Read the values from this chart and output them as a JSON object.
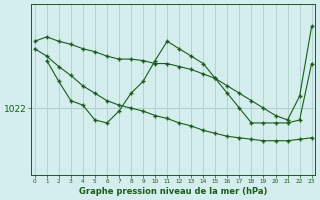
{
  "title": "Graphe pression niveau de la mer (hPa)",
  "background_color": "#d4eeed",
  "line_color": "#1a5c1a",
  "grid_color": "#b0d0cc",
  "ylabel_value": 1022,
  "x_ticks": [
    0,
    1,
    2,
    3,
    4,
    5,
    6,
    7,
    8,
    9,
    10,
    11,
    12,
    13,
    14,
    15,
    16,
    17,
    18,
    19,
    20,
    21,
    22,
    23
  ],
  "series1": {
    "x": [
      0,
      1,
      2,
      3,
      4,
      5,
      6,
      7,
      8,
      9,
      10,
      11,
      12,
      13,
      14,
      15,
      16,
      17,
      18,
      19,
      20,
      21,
      22,
      23
    ],
    "y": [
      1026.5,
      1026.8,
      1026.5,
      1026.3,
      1026.0,
      1025.8,
      1025.5,
      1025.3,
      1025.3,
      1025.2,
      1025.0,
      1025.0,
      1024.8,
      1024.6,
      1024.3,
      1024.0,
      1023.5,
      1023.0,
      1022.5,
      1022.0,
      1021.5,
      1021.2,
      1022.8,
      1027.5
    ]
  },
  "series2": {
    "x": [
      1,
      2,
      3,
      4,
      5,
      6,
      7,
      8,
      9,
      10,
      11,
      12,
      13,
      14,
      15,
      16,
      17,
      18,
      19,
      20,
      21,
      22,
      23
    ],
    "y": [
      1025.2,
      1023.8,
      1022.5,
      1022.2,
      1021.2,
      1021.0,
      1021.8,
      1023.0,
      1023.8,
      1025.2,
      1026.5,
      1026.0,
      1025.5,
      1025.0,
      1024.0,
      1023.0,
      1022.0,
      1021.0,
      1021.0,
      1021.0,
      1021.0,
      1021.2,
      1025.0
    ]
  },
  "series3": {
    "x": [
      0,
      1,
      2,
      3,
      4,
      5,
      6,
      7,
      8,
      9,
      10,
      11,
      12,
      13,
      14,
      15,
      16,
      17,
      18,
      19,
      20,
      21,
      22,
      23
    ],
    "y": [
      1026.0,
      1025.5,
      1024.8,
      1024.2,
      1023.5,
      1023.0,
      1022.5,
      1022.2,
      1022.0,
      1021.8,
      1021.5,
      1021.3,
      1021.0,
      1020.8,
      1020.5,
      1020.3,
      1020.1,
      1020.0,
      1019.9,
      1019.8,
      1019.8,
      1019.8,
      1019.9,
      1020.0
    ]
  },
  "ylim": [
    1017.5,
    1029.0
  ],
  "xlim": [
    -0.3,
    23.3
  ]
}
